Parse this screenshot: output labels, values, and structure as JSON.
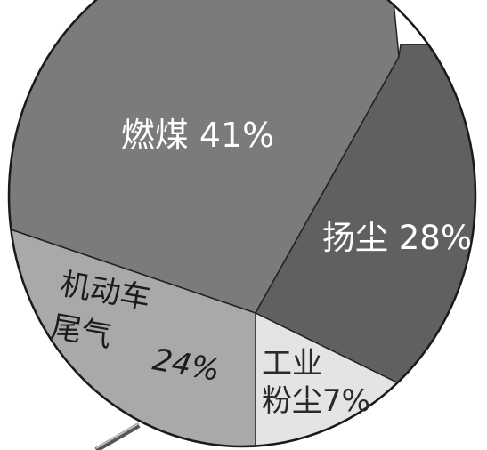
{
  "chart_data": {
    "type": "pie",
    "slices": [
      {
        "label": "燃煤",
        "value": 41,
        "value_text": "41%",
        "color": "#7b7b7b",
        "text_color": "#ffffff"
      },
      {
        "label": "扬尘",
        "value": 28,
        "value_text": "28%",
        "color": "#606060",
        "text_color": "#ffffff"
      },
      {
        "label": "工业粉尘",
        "value": 7,
        "value_text": "7%",
        "color": "#e4e4e4",
        "text_color": "#2a2a2a",
        "label_lines": [
          "工业",
          "粉尘"
        ]
      },
      {
        "label": "机动车尾气",
        "value": 24,
        "value_text": "24%",
        "color": "#a9a9a9",
        "text_color": "#1c1c1c",
        "label_lines": [
          "机动车",
          "尾气"
        ]
      }
    ]
  }
}
